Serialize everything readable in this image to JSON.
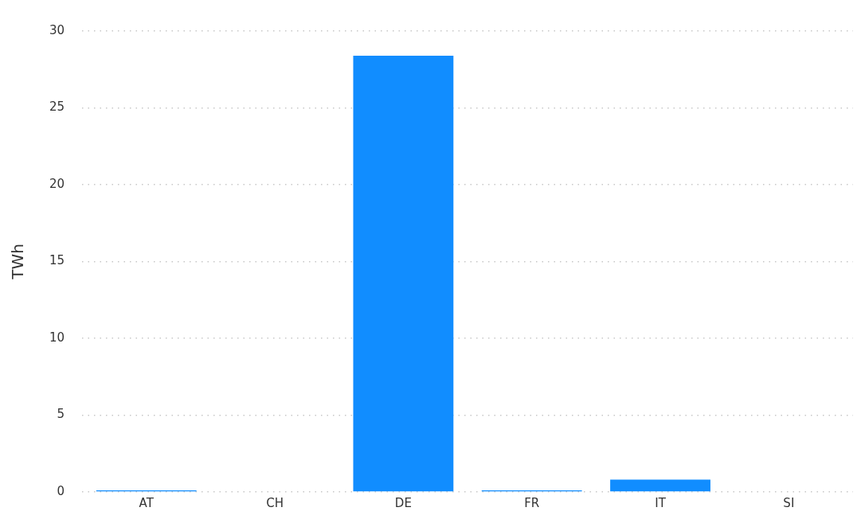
{
  "chart_data": {
    "type": "bar",
    "ylabel": "TWh",
    "categories": [
      "AT",
      "CH",
      "DE",
      "FR",
      "IT",
      "SI"
    ],
    "values": [
      0.1,
      0,
      28.4,
      0.1,
      0.8,
      0
    ],
    "color": "#118dff",
    "ylim": [
      0,
      30
    ],
    "yticks": [
      0,
      5,
      10,
      15,
      20,
      25,
      30
    ],
    "grid": "y",
    "legend": false
  }
}
